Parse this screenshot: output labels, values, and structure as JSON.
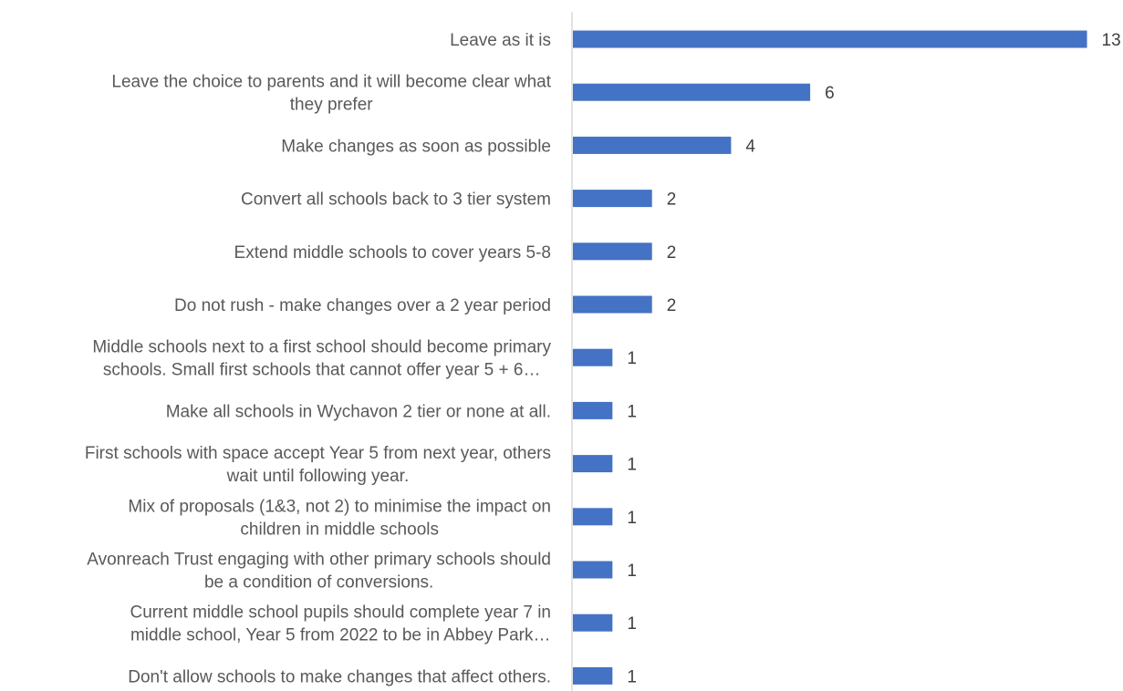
{
  "chart_data": {
    "type": "bar",
    "orientation": "horizontal",
    "categories": [
      [
        "Leave as it is"
      ],
      [
        "Leave the choice to parents and it will become clear what",
        "they prefer"
      ],
      [
        "Make changes as soon as possible"
      ],
      [
        "Convert all schools back to 3 tier system"
      ],
      [
        "Extend middle schools to cover years 5-8"
      ],
      [
        "Do not rush - make changes over a 2 year period"
      ],
      [
        "Middle schools next to a first school should become primary",
        "schools. Small first schools that cannot offer year 5 + 6…"
      ],
      [
        "Make all schools in Wychavon 2 tier or none at all."
      ],
      [
        "First schools with space accept Year 5 from next year, others",
        "wait until following year."
      ],
      [
        "Mix of proposals (1&3, not 2) to minimise the impact on",
        "children in middle schools"
      ],
      [
        "Avonreach Trust engaging with other primary schools should",
        "be a condition of conversions."
      ],
      [
        "Current middle school pupils should complete year 7 in",
        "middle school, Year 5 from 2022 to be in Abbey Park…"
      ],
      [
        "Don't allow schools to make changes that affect others."
      ]
    ],
    "values": [
      13,
      6,
      4,
      2,
      2,
      2,
      1,
      1,
      1,
      1,
      1,
      1,
      1
    ],
    "data_labels": true,
    "bar_color": "#4472C4",
    "axis_line_color": "#D9D9D9",
    "grid": false,
    "legend": "none",
    "xlim": [
      0,
      13
    ]
  }
}
